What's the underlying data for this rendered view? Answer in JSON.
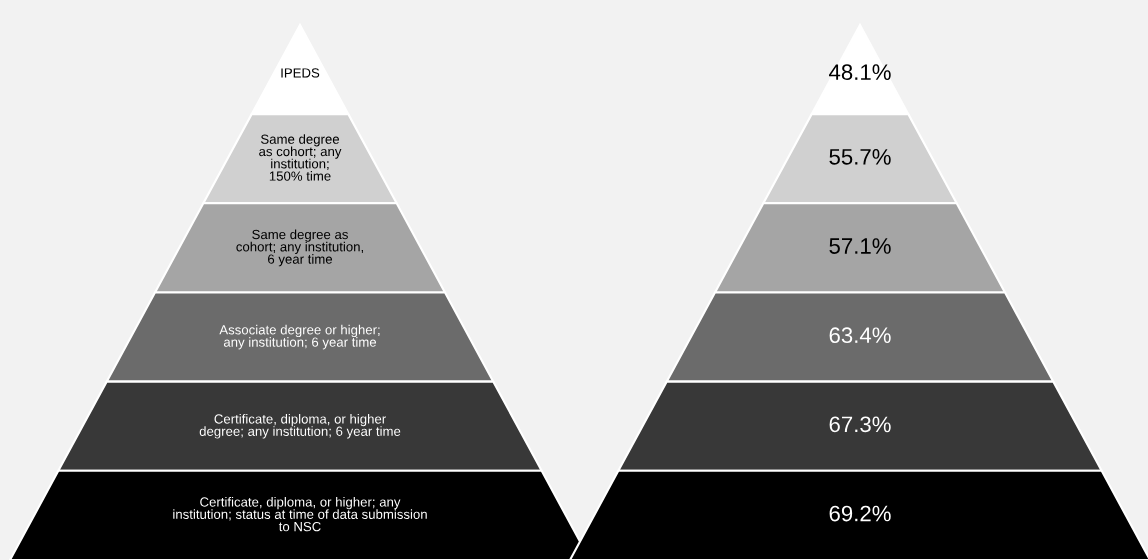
{
  "chart_data": {
    "type": "other",
    "categories": [
      "IPEDS",
      "Same degree\nas cohort; any\ninstitution;\n150% time",
      "Same degree as\ncohort; any institution,\n6 year time",
      "Associate degree or higher;\nany institution; 6 year time",
      "Certificate, diploma, or higher\ndegree; any institution; 6 year time",
      "Certificate, diploma, or higher; any\ninstitution; status at time of data submission\nto NSC"
    ],
    "values": [
      48.1,
      55.7,
      57.1,
      63.4,
      67.3,
      69.2
    ],
    "value_labels": [
      "48.1%",
      "55.7%",
      "57.1%",
      "63.4%",
      "67.3%",
      "69.2%"
    ],
    "colors": [
      "#ffffff",
      "#d0d0d0",
      "#a5a5a5",
      "#6b6b6b",
      "#383838",
      "#000000"
    ]
  }
}
